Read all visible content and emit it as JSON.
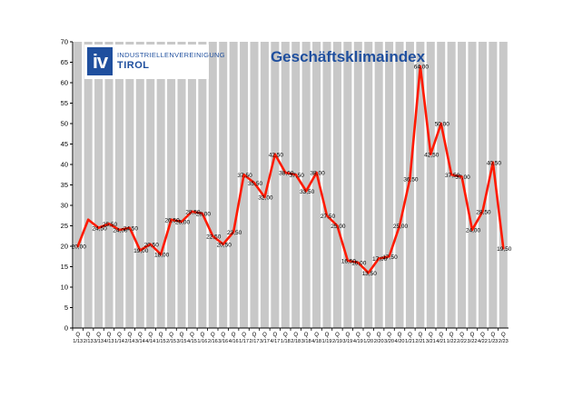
{
  "logo": {
    "mark": "iv",
    "line1": "INDUSTRIELLENVEREINIGUNG",
    "line2": "TIROL"
  },
  "chart_data": {
    "type": "line",
    "title": "Geschäftsklimaindex",
    "xlabel": "",
    "ylabel": "",
    "ylim": [
      0,
      70
    ],
    "yticks": [
      0,
      5,
      10,
      15,
      20,
      25,
      30,
      35,
      40,
      45,
      50,
      55,
      60,
      65,
      70
    ],
    "grid": "vertical-bars",
    "categories": [
      "1/13",
      "2/13",
      "3/13",
      "4/13",
      "1/14",
      "2/14",
      "3/14",
      "4/14",
      "1/15",
      "2/15",
      "3/15",
      "4/15",
      "1/16",
      "2/16",
      "3/16",
      "4/16",
      "1/17",
      "2/17",
      "3/17",
      "4/17",
      "1/18",
      "2/18",
      "3/18",
      "4/18",
      "1/19",
      "2/19",
      "3/19",
      "4/19",
      "1/20",
      "2/20",
      "3/20",
      "4/20",
      "1/21",
      "2/21",
      "3/21",
      "4/21",
      "1/22",
      "2/22",
      "3/22",
      "4/22",
      "1/23",
      "2/23"
    ],
    "category_prefix": "Q",
    "series": [
      {
        "color": "#ff1a00",
        "values": [
          20.0,
          26.5,
          24.5,
          25.5,
          24.0,
          24.5,
          19.0,
          20.5,
          18.0,
          26.5,
          26.0,
          28.5,
          28.0,
          22.5,
          20.5,
          23.5,
          37.5,
          35.5,
          32.0,
          42.5,
          38.0,
          37.5,
          33.5,
          38.0,
          27.5,
          25.0,
          16.5,
          16.0,
          13.5,
          17.0,
          17.5,
          25.0,
          36.5,
          64.0,
          42.5,
          50.0,
          37.5,
          37.0,
          24.0,
          28.5,
          40.5,
          19.5
        ],
        "labels": [
          "20,00",
          "",
          "24,50",
          "25,50",
          "24,00",
          "24,50",
          "19,00",
          "20,50",
          "18,00",
          "26,50",
          "26,00",
          "28,50",
          "28,00",
          "22,50",
          "20,50",
          "23,50",
          "37,50",
          "35,50",
          "32,00",
          "42,50",
          "38,00",
          "37,50",
          "33,50",
          "38,00",
          "27,50",
          "25,00",
          "16,50",
          "16,00",
          "13,50",
          "17,00",
          "17,50",
          "25,00",
          "36,50",
          "64,00",
          "42,50",
          "50,00",
          "37,50",
          "37,00",
          "24,00",
          "28,50",
          "40,50",
          "19,50"
        ]
      }
    ]
  }
}
